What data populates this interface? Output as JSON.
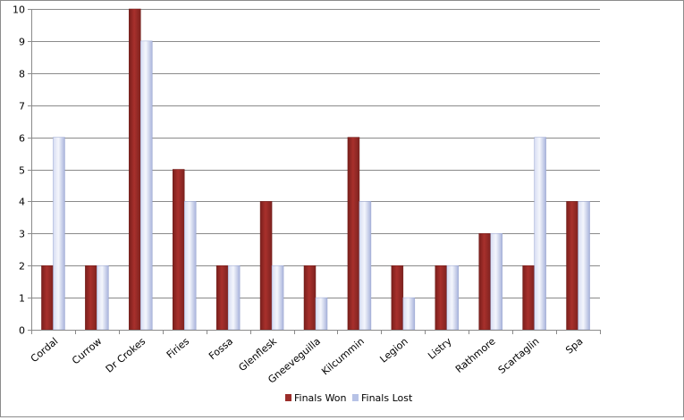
{
  "chart_data": {
    "type": "bar",
    "title": "",
    "xlabel": "",
    "ylabel": "",
    "ylim": [
      0,
      10
    ],
    "yticks": [
      0,
      1,
      2,
      3,
      4,
      5,
      6,
      7,
      8,
      9,
      10
    ],
    "grid": true,
    "legend_position": "bottom",
    "categories": [
      "Cordal",
      "Currow",
      "Dr Crokes",
      "Firies",
      "Fossa",
      "Glenflesk",
      "Gneeveguilla",
      "Kilcummin",
      "Legion",
      "Listry",
      "Rathmore",
      "Scartaglin",
      "Spa"
    ],
    "series": [
      {
        "name": "Finals Won",
        "values": [
          2,
          2,
          10,
          5,
          2,
          4,
          2,
          6,
          2,
          2,
          3,
          2,
          4
        ],
        "color": "#9b2d2a"
      },
      {
        "name": "Finals Lost",
        "values": [
          6,
          2,
          9,
          4,
          2,
          2,
          1,
          4,
          1,
          2,
          3,
          6,
          4
        ],
        "color": "#b7c2e6"
      }
    ]
  }
}
